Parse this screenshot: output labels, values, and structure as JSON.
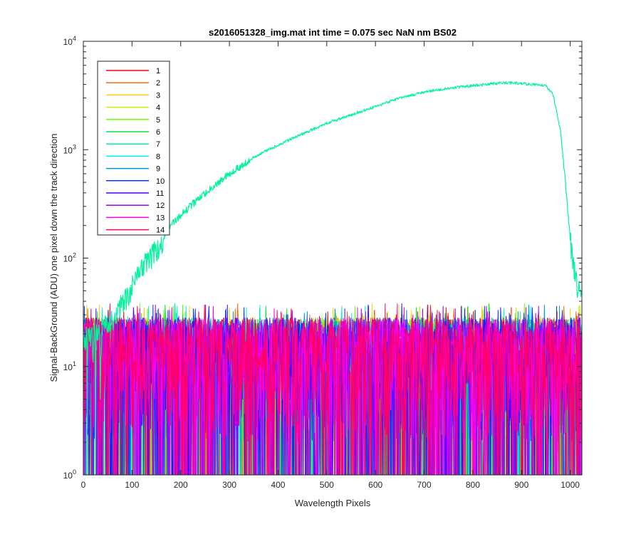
{
  "chart_data": {
    "type": "line",
    "title": "s2016051328_img.mat int time = 0.075 sec  NaN nm BS02",
    "xlabel": "Wavelength Pixels",
    "ylabel": "Signal-BackGround (ADU) one pixel down the track direction",
    "xlim": [
      0,
      1024
    ],
    "ylim": [
      1,
      10000
    ],
    "yscale": "log",
    "grid": false,
    "legend_position": "top-left",
    "x_ticks": [
      "0",
      "100",
      "200",
      "300",
      "400",
      "500",
      "600",
      "700",
      "800",
      "900",
      "1000"
    ],
    "y_ticks": [
      {
        "base": "10",
        "exp": "0"
      },
      {
        "base": "10",
        "exp": "1"
      },
      {
        "base": "10",
        "exp": "2"
      },
      {
        "base": "10",
        "exp": "3"
      },
      {
        "base": "10",
        "exp": "4"
      }
    ],
    "noise_floor": {
      "description_range": [
        1,
        40
      ],
      "typical_max": 30
    },
    "series": [
      {
        "name": "1",
        "color": "#ff0000"
      },
      {
        "name": "2",
        "color": "#ff6a00"
      },
      {
        "name": "3",
        "color": "#ffd000"
      },
      {
        "name": "4",
        "color": "#c8f000"
      },
      {
        "name": "5",
        "color": "#66ff00"
      },
      {
        "name": "6",
        "color": "#00e83c"
      },
      {
        "name": "7",
        "color": "#00f59a",
        "envelope": [
          {
            "x": 0,
            "y": 18
          },
          {
            "x": 30,
            "y": 20
          },
          {
            "x": 60,
            "y": 28
          },
          {
            "x": 90,
            "y": 45
          },
          {
            "x": 120,
            "y": 80
          },
          {
            "x": 150,
            "y": 120
          },
          {
            "x": 180,
            "y": 200
          },
          {
            "x": 200,
            "y": 250
          },
          {
            "x": 250,
            "y": 400
          },
          {
            "x": 300,
            "y": 600
          },
          {
            "x": 350,
            "y": 850
          },
          {
            "x": 380,
            "y": 1000
          },
          {
            "x": 400,
            "y": 1100
          },
          {
            "x": 450,
            "y": 1400
          },
          {
            "x": 500,
            "y": 1750
          },
          {
            "x": 550,
            "y": 2100
          },
          {
            "x": 600,
            "y": 2500
          },
          {
            "x": 650,
            "y": 3000
          },
          {
            "x": 700,
            "y": 3400
          },
          {
            "x": 750,
            "y": 3700
          },
          {
            "x": 800,
            "y": 3900
          },
          {
            "x": 850,
            "y": 4100
          },
          {
            "x": 880,
            "y": 4150
          },
          {
            "x": 920,
            "y": 4000
          },
          {
            "x": 950,
            "y": 3900
          },
          {
            "x": 965,
            "y": 3200
          },
          {
            "x": 980,
            "y": 1500
          },
          {
            "x": 990,
            "y": 500
          },
          {
            "x": 1000,
            "y": 150
          },
          {
            "x": 1010,
            "y": 70
          },
          {
            "x": 1024,
            "y": 40
          }
        ]
      },
      {
        "name": "8",
        "color": "#00f0f0"
      },
      {
        "name": "9",
        "color": "#0096e6"
      },
      {
        "name": "10",
        "color": "#0032ff"
      },
      {
        "name": "11",
        "color": "#4a00ff"
      },
      {
        "name": "12",
        "color": "#9b00ff"
      },
      {
        "name": "13",
        "color": "#ff00e6"
      },
      {
        "name": "14",
        "color": "#ff0066"
      }
    ]
  }
}
